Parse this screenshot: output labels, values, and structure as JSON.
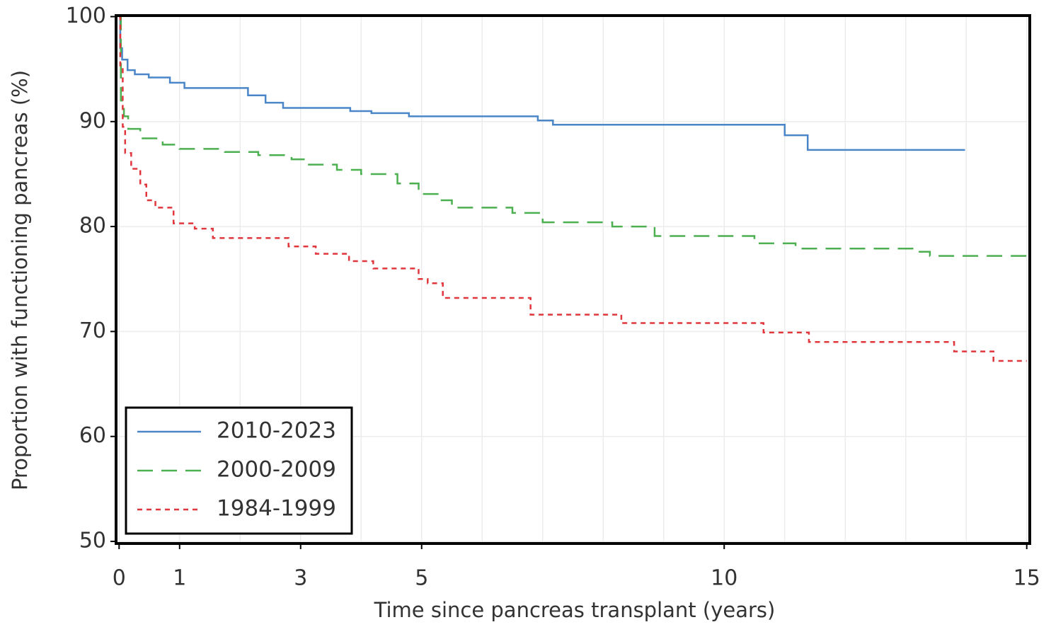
{
  "chart_data": {
    "type": "line",
    "step": "post",
    "xlabel": "Time since pancreas transplant (years)",
    "ylabel": "Proportion with functioning pancreas (%)",
    "xlim": [
      -0.05,
      15.05
    ],
    "ylim": [
      49.8,
      100.1
    ],
    "xticks": [
      0,
      1,
      3,
      5,
      10,
      15
    ],
    "minor_xticks": [
      2,
      4,
      6,
      7,
      8,
      9,
      11,
      12,
      13,
      14
    ],
    "yticks": [
      50,
      60,
      70,
      80,
      90,
      100
    ],
    "grid": true,
    "legend": "lower left",
    "series": [
      {
        "name": "2010-2023",
        "color": "#4a86c8",
        "dash": "solid",
        "x": [
          0,
          0.02,
          0.05,
          0.14,
          0.26,
          0.49,
          0.84,
          1.08,
          2.13,
          2.42,
          2.71,
          3.82,
          4.17,
          4.79,
          6.92,
          7.17,
          11.0,
          11.38,
          13.98
        ],
        "values": [
          100,
          97,
          95.9,
          94.9,
          94.5,
          94.2,
          93.7,
          93.2,
          92.5,
          91.8,
          91.3,
          91.0,
          90.8,
          90.5,
          90.1,
          89.7,
          88.7,
          87.3,
          87.3
        ]
      },
      {
        "name": "2000-2009",
        "color": "#4caf50",
        "dash": "long",
        "x": [
          0,
          0.03,
          0.08,
          0.15,
          0.35,
          0.72,
          1.0,
          1.75,
          2.3,
          2.85,
          3.1,
          3.6,
          4.0,
          4.6,
          4.95,
          5.3,
          5.5,
          6.5,
          7.0,
          8.15,
          8.85,
          10.5,
          11.18,
          13.2,
          13.4,
          15
        ],
        "values": [
          100,
          92,
          90.5,
          89.3,
          88.4,
          87.8,
          87.4,
          87.1,
          86.8,
          86.4,
          85.9,
          85.4,
          85.0,
          84.1,
          83.1,
          82.5,
          81.8,
          81.3,
          80.4,
          80.0,
          79.1,
          78.4,
          77.9,
          77.6,
          77.2,
          77.2
        ]
      },
      {
        "name": "1984-1999",
        "color": "#e0363c",
        "dash": "short",
        "x": [
          0,
          0.02,
          0.06,
          0.1,
          0.2,
          0.35,
          0.45,
          0.6,
          0.9,
          1.25,
          1.55,
          2.8,
          3.25,
          3.8,
          4.2,
          4.95,
          5.1,
          5.35,
          6.8,
          8.3,
          10.65,
          11.4,
          13.8,
          14.45,
          15
        ],
        "values": [
          100,
          95,
          89.5,
          87,
          85.5,
          84,
          82.5,
          81.8,
          80.3,
          79.8,
          78.9,
          78.1,
          77.4,
          76.7,
          76.0,
          75.0,
          74.6,
          73.2,
          71.6,
          70.8,
          69.9,
          69.0,
          68.1,
          67.2,
          67.2
        ]
      }
    ]
  }
}
